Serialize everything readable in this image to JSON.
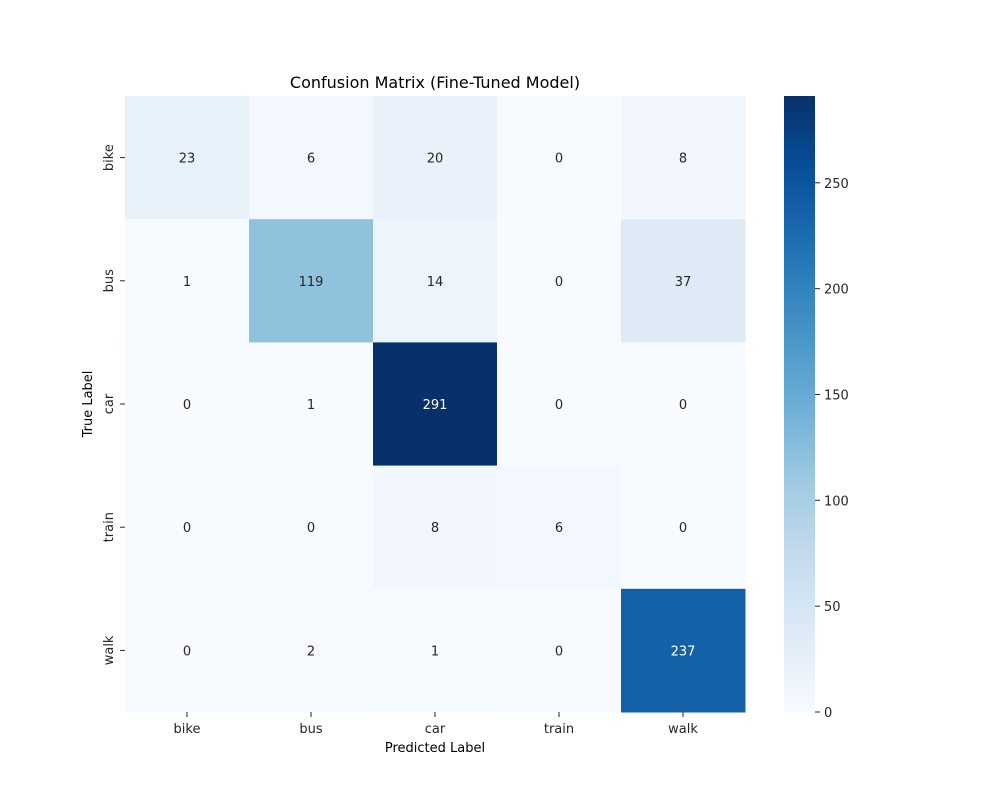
{
  "chart_data": {
    "type": "heatmap",
    "title": "Confusion Matrix (Fine-Tuned Model)",
    "xlabel": "Predicted Label",
    "ylabel": "True Label",
    "x_categories": [
      "bike",
      "bus",
      "car",
      "train",
      "walk"
    ],
    "y_categories": [
      "bike",
      "bus",
      "car",
      "train",
      "walk"
    ],
    "values": [
      [
        23,
        6,
        20,
        0,
        8
      ],
      [
        1,
        119,
        14,
        0,
        37
      ],
      [
        0,
        1,
        291,
        0,
        0
      ],
      [
        0,
        0,
        8,
        6,
        0
      ],
      [
        0,
        2,
        1,
        0,
        237
      ]
    ],
    "colormap": "Blues",
    "colorbar": {
      "range": [
        0,
        291
      ],
      "ticks": [
        0,
        50,
        100,
        150,
        200,
        250
      ]
    },
    "grid": false,
    "legend": "colorbar-right"
  }
}
